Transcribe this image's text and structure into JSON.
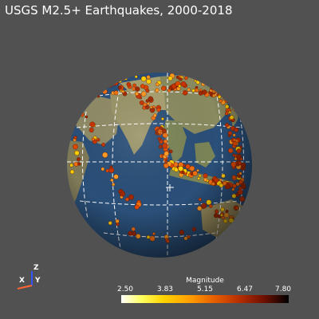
{
  "title": "USGS M2.5+ Earthquakes, 2000-2018",
  "axes": {
    "x": "X",
    "y": "Y",
    "z": "Z",
    "x_color": "#ff6633",
    "y_color": "#3366ff",
    "z_color": "#ffffff"
  },
  "colorbar": {
    "title": "Magnitude",
    "ticks": [
      "2.50",
      "3.83",
      "5.15",
      "6.47",
      "7.80"
    ],
    "colors": [
      "#ffffff",
      "#ffff60",
      "#ffd400",
      "#ff9a00",
      "#e86000",
      "#b83000",
      "#701000",
      "#000000"
    ]
  },
  "colors": {
    "background": "#515151",
    "ocean": "#2a4f78",
    "land": "#8f8f6a",
    "graticule": "#ffffff",
    "quake_main": "#e04800",
    "quake_dark": "#a02800",
    "quake_light": "#ff9a20"
  }
}
